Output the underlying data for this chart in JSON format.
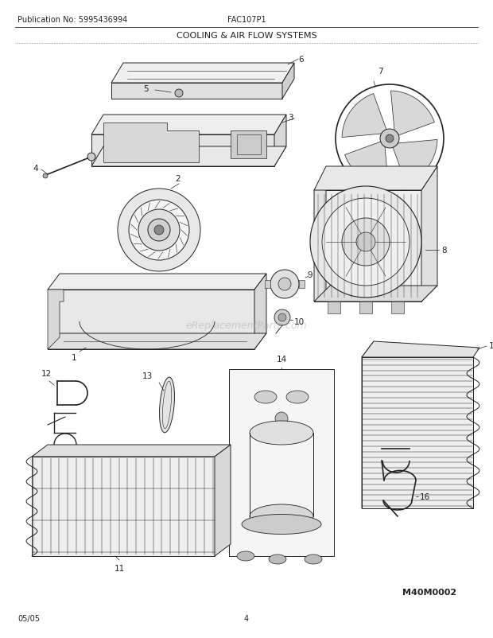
{
  "title": "COOLING & AIR FLOW SYSTEMS",
  "pub_no": "Publication No: 5995436994",
  "model": "FAC107P1",
  "date": "05/05",
  "page": "4",
  "ref_code": "M40M0002",
  "watermark": "eReplacementParts.com",
  "bg_color": "#ffffff",
  "line_color": "#222222",
  "text_color": "#222222",
  "title_fontsize": 8,
  "header_fontsize": 7,
  "label_fontsize": 7.5,
  "footer_fontsize": 7
}
